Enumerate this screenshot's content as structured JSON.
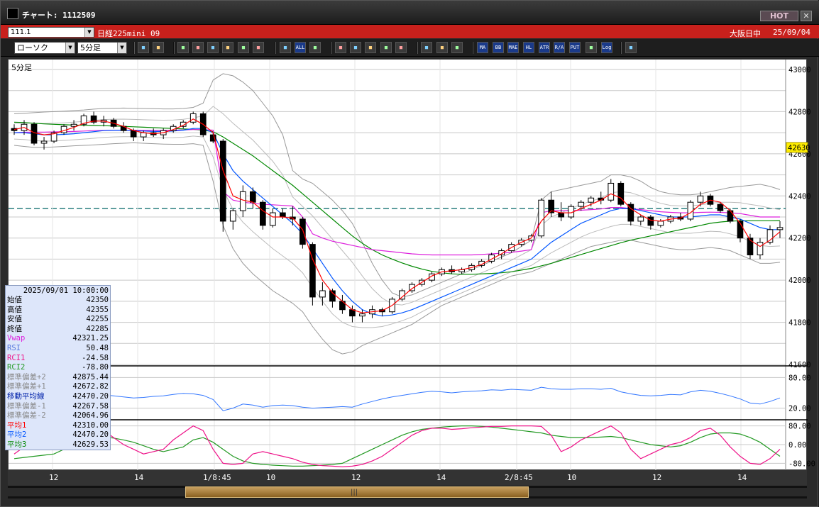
{
  "window": {
    "title": "チャート: 1112509",
    "hot_label": "HOT",
    "close_label": "✕"
  },
  "symbolbar": {
    "symbol_value": "111.1",
    "instrument": "日経225mini 09",
    "market": "大阪日中",
    "date": "25/09/04"
  },
  "toolbar": {
    "chart_type": "ローソク",
    "period": "5分足",
    "icons": [
      "zoom-icon",
      "cross-icon",
      "pen-icon",
      "draw-icon",
      "arrow-icon",
      "note-icon",
      "trash-icon",
      "bars-icon",
      "bars2-icon",
      "all-icon",
      "down-icon",
      "search-icon",
      "grid-icon",
      "mark-icon",
      "hatch-icon",
      "settings-icon",
      "wrench-icon",
      "color-icon",
      "ichimoku-icon",
      "ma-icon",
      "bb-icon",
      "mae-icon",
      "hl-icon",
      "atr-icon",
      "ra-icon",
      "put-icon",
      "frame-icon",
      "log-icon",
      "export-icon"
    ],
    "button_labels": {
      "all": "ALL",
      "ma": "MA",
      "bb": "BB",
      "mae": "MAE",
      "hl": "HL",
      "atr": "ATR",
      "ra": "R/A",
      "put": "PUT",
      "log": "Log"
    }
  },
  "chart": {
    "period_label": "5分足",
    "price_labels": [
      "43000",
      "42800",
      "42600",
      "42400",
      "42200",
      "42000",
      "41800",
      "41600"
    ],
    "current_price": "42630",
    "rsi_labels": [
      "80.00",
      "20.00"
    ],
    "rci_labels": [
      "80.00",
      "0.00",
      "-80.00"
    ],
    "x_labels": [
      "12",
      "14",
      "1/8:45",
      "10",
      "12",
      "14",
      "2/8:45",
      "10",
      "12",
      "14"
    ]
  },
  "colors": {
    "ma1": "#ff0000",
    "ma2": "#0055ff",
    "ma3": "#008800",
    "vwap": "#dd22dd",
    "bands": "#999999",
    "rsi": "#3377ff",
    "rci1": "#ee1188",
    "rci2": "#229922",
    "dashed": "#006666"
  },
  "chart_data": {
    "type": "candlestick",
    "ylim": [
      41600,
      43000
    ],
    "series_note_labels": [],
    "candles": [
      [
        42720,
        42740,
        42690,
        42710
      ],
      [
        42710,
        42760,
        42690,
        42740
      ],
      [
        42740,
        42750,
        42640,
        42650
      ],
      [
        42650,
        42680,
        42620,
        42660
      ],
      [
        42660,
        42710,
        42650,
        42700
      ],
      [
        42700,
        42740,
        42690,
        42730
      ],
      [
        42730,
        42760,
        42710,
        42740
      ],
      [
        42740,
        42790,
        42730,
        42780
      ],
      [
        42780,
        42800,
        42740,
        42750
      ],
      [
        42750,
        42780,
        42730,
        42760
      ],
      [
        42760,
        42770,
        42720,
        42730
      ],
      [
        42730,
        42750,
        42700,
        42710
      ],
      [
        42710,
        42720,
        42660,
        42680
      ],
      [
        42680,
        42710,
        42660,
        42700
      ],
      [
        42700,
        42720,
        42680,
        42690
      ],
      [
        42690,
        42720,
        42670,
        42710
      ],
      [
        42710,
        42740,
        42700,
        42730
      ],
      [
        42730,
        42760,
        42720,
        42750
      ],
      [
        42750,
        42800,
        42740,
        42790
      ],
      [
        42790,
        42800,
        42680,
        42690
      ],
      [
        42690,
        42700,
        42650,
        42660
      ],
      [
        42660,
        42670,
        42230,
        42280
      ],
      [
        42280,
        42340,
        42240,
        42330
      ],
      [
        42330,
        42450,
        42300,
        42420
      ],
      [
        42420,
        42440,
        42340,
        42370
      ],
      [
        42370,
        42380,
        42240,
        42260
      ],
      [
        42260,
        42340,
        42250,
        42320
      ],
      [
        42320,
        42340,
        42290,
        42300
      ],
      [
        42300,
        42350,
        42260,
        42290
      ],
      [
        42290,
        42300,
        42150,
        42170
      ],
      [
        42170,
        42180,
        41880,
        41920
      ],
      [
        41920,
        41990,
        41880,
        41950
      ],
      [
        41950,
        41960,
        41870,
        41900
      ],
      [
        41900,
        41930,
        41840,
        41860
      ],
      [
        41860,
        41880,
        41800,
        41830
      ],
      [
        41830,
        41860,
        41800,
        41840
      ],
      [
        41840,
        41880,
        41820,
        41860
      ],
      [
        41860,
        41870,
        41830,
        41850
      ],
      [
        41850,
        41920,
        41840,
        41910
      ],
      [
        41910,
        41960,
        41900,
        41950
      ],
      [
        41950,
        41990,
        41940,
        41980
      ],
      [
        41980,
        42010,
        41970,
        42000
      ],
      [
        42000,
        42040,
        41990,
        42030
      ],
      [
        42030,
        42060,
        42020,
        42050
      ],
      [
        42050,
        42070,
        42030,
        42040
      ],
      [
        42040,
        42060,
        42030,
        42050
      ],
      [
        42050,
        42080,
        42040,
        42070
      ],
      [
        42070,
        42100,
        42060,
        42090
      ],
      [
        42090,
        42130,
        42080,
        42120
      ],
      [
        42120,
        42150,
        42100,
        42140
      ],
      [
        42140,
        42180,
        42130,
        42170
      ],
      [
        42170,
        42200,
        42160,
        42190
      ],
      [
        42190,
        42220,
        42180,
        42210
      ],
      [
        42210,
        42390,
        42200,
        42380
      ],
      [
        42380,
        42420,
        42300,
        42320
      ],
      [
        42320,
        42370,
        42280,
        42300
      ],
      [
        42300,
        42360,
        42290,
        42350
      ],
      [
        42350,
        42380,
        42330,
        42370
      ],
      [
        42370,
        42400,
        42350,
        42390
      ],
      [
        42390,
        42420,
        42360,
        42380
      ],
      [
        42380,
        42480,
        42370,
        42460
      ],
      [
        42460,
        42470,
        42350,
        42360
      ],
      [
        42360,
        42370,
        42260,
        42280
      ],
      [
        42280,
        42310,
        42260,
        42300
      ],
      [
        42300,
        42310,
        42240,
        42260
      ],
      [
        42260,
        42290,
        42250,
        42280
      ],
      [
        42280,
        42310,
        42270,
        42300
      ],
      [
        42300,
        42320,
        42280,
        42290
      ],
      [
        42290,
        42380,
        42280,
        42370
      ],
      [
        42370,
        42420,
        42350,
        42400
      ],
      [
        42400,
        42410,
        42350,
        42360
      ],
      [
        42360,
        42370,
        42320,
        42330
      ],
      [
        42330,
        42340,
        42270,
        42280
      ],
      [
        42280,
        42290,
        42180,
        42200
      ],
      [
        42200,
        42220,
        42100,
        42120
      ],
      [
        42120,
        42200,
        42100,
        42180
      ],
      [
        42180,
        42260,
        42170,
        42240
      ],
      [
        42240,
        42280,
        42200,
        42250
      ]
    ],
    "ma1": [
      42715,
      42725,
      42700,
      42690,
      42695,
      42710,
      42725,
      42745,
      42755,
      42755,
      42745,
      42730,
      42710,
      42700,
      42695,
      42700,
      42715,
      42735,
      42765,
      42740,
      42700,
      42520,
      42400,
      42380,
      42370,
      42330,
      42300,
      42300,
      42295,
      42240,
      42100,
      42000,
      41940,
      41900,
      41860,
      41845,
      41850,
      41855,
      41880,
      41920,
      41960,
      41990,
      42020,
      42040,
      42045,
      42050,
      42060,
      42075,
      42100,
      42125,
      42155,
      42180,
      42200,
      42280,
      42330,
      42320,
      42320,
      42340,
      42360,
      42380,
      42410,
      42390,
      42340,
      42310,
      42285,
      42280,
      42290,
      42295,
      42320,
      42360,
      42380,
      42370,
      42330,
      42270,
      42190,
      42160,
      42190,
      42230
    ],
    "ma2": [
      42700,
      42700,
      42695,
      42690,
      42690,
      42692,
      42695,
      42700,
      42705,
      42710,
      42712,
      42712,
      42710,
      42708,
      42706,
      42706,
      42708,
      42712,
      42720,
      42720,
      42700,
      42600,
      42520,
      42470,
      42430,
      42390,
      42350,
      42310,
      42270,
      42220,
      42150,
      42080,
      42010,
      41950,
      41900,
      41860,
      41840,
      41830,
      41835,
      41845,
      41860,
      41880,
      41900,
      41920,
      41940,
      41960,
      41980,
      42000,
      42020,
      42040,
      42060,
      42080,
      42100,
      42140,
      42180,
      42210,
      42240,
      42270,
      42290,
      42310,
      42330,
      42340,
      42340,
      42330,
      42320,
      42310,
      42300,
      42300,
      42300,
      42305,
      42310,
      42310,
      42300,
      42290,
      42270,
      42250,
      42240,
      42240
    ],
    "ma3": [
      42750,
      42748,
      42745,
      42742,
      42740,
      42738,
      42736,
      42735,
      42734,
      42733,
      42732,
      42730,
      42728,
      42726,
      42724,
      42722,
      42720,
      42718,
      42716,
      42712,
      42705,
      42680,
      42650,
      42620,
      42590,
      42555,
      42520,
      42485,
      42450,
      42410,
      42370,
      42330,
      42290,
      42250,
      42210,
      42175,
      42145,
      42120,
      42100,
      42082,
      42066,
      42053,
      42042,
      42035,
      42030,
      42028,
      42028,
      42030,
      42032,
      42035,
      42040,
      42048,
      42056,
      42068,
      42080,
      42094,
      42108,
      42122,
      42136,
      42150,
      42164,
      42178,
      42190,
      42200,
      42210,
      42220,
      42230,
      42240,
      42250,
      42260,
      42270,
      42276,
      42280,
      42282,
      42282,
      42282,
      42282,
      42283
    ],
    "vwap": [
      42700,
      42702,
      42703,
      42703,
      42704,
      42705,
      42706,
      42708,
      42710,
      42711,
      42712,
      42712,
      42712,
      42711,
      42711,
      42711,
      42712,
      42713,
      42715,
      42715,
      42712,
      42420,
      42380,
      42370,
      42365,
      42360,
      42358,
      42355,
      42352,
      42300,
      42220,
      42200,
      42185,
      42175,
      42165,
      42155,
      42145,
      42140,
      42135,
      42130,
      42125,
      42122,
      42120,
      42120,
      42120,
      42120,
      42120,
      42122,
      42125,
      42128,
      42132,
      42138,
      42145,
      42320,
      42330,
      42330,
      42330,
      42332,
      42335,
      42338,
      42345,
      42345,
      42340,
      42335,
      42330,
      42325,
      42322,
      42320,
      42320,
      42322,
      42323,
      42322,
      42320,
      42316,
      42308,
      42300,
      42300,
      42300
    ],
    "bb_upper2": [
      42790,
      42792,
      42795,
      42798,
      42800,
      42802,
      42805,
      42808,
      42812,
      42815,
      42816,
      42817,
      42816,
      42815,
      42814,
      42813,
      42813,
      42815,
      42820,
      42840,
      42950,
      42980,
      42970,
      42940,
      42900,
      42840,
      42780,
      42690,
      42520,
      42480,
      42460,
      42420,
      42380,
      42330,
      42270,
      42180,
      42080,
      42000,
      41940,
      41920,
      41930,
      41950,
      41970,
      41990,
      42010,
      42030,
      42050,
      42070,
      42090,
      42110,
      42130,
      42160,
      42190,
      42380,
      42420,
      42430,
      42440,
      42450,
      42460,
      42470,
      42500,
      42500,
      42490,
      42470,
      42440,
      42420,
      42410,
      42405,
      42405,
      42410,
      42420,
      42430,
      42440,
      42445,
      42450,
      42455,
      42445,
      42430
    ],
    "bb_lower2": [
      42640,
      42635,
      42630,
      42630,
      42632,
      42635,
      42638,
      42640,
      42642,
      42645,
      42648,
      42650,
      42652,
      42650,
      42648,
      42646,
      42645,
      42645,
      42648,
      42640,
      42470,
      42260,
      42150,
      42080,
      42030,
      41990,
      41950,
      41920,
      41890,
      41850,
      41780,
      41720,
      41670,
      41650,
      41660,
      41690,
      41710,
      41730,
      41750,
      41770,
      41790,
      41820,
      41850,
      41880,
      41900,
      41920,
      41940,
      41960,
      41980,
      42000,
      42020,
      42030,
      42040,
      42060,
      42080,
      42100,
      42120,
      42140,
      42160,
      42170,
      42180,
      42190,
      42190,
      42180,
      42170,
      42160,
      42150,
      42145,
      42145,
      42150,
      42155,
      42150,
      42140,
      42120,
      42100,
      42080,
      42080,
      42085
    ],
    "rsi": [
      38,
      39,
      38,
      40,
      43,
      44,
      46,
      48,
      47,
      46,
      44,
      42,
      40,
      41,
      43,
      44,
      47,
      49,
      48,
      45,
      37,
      15,
      20,
      28,
      26,
      22,
      25,
      26,
      25,
      22,
      20,
      21,
      22,
      23,
      22,
      28,
      33,
      38,
      42,
      45,
      48,
      51,
      53,
      52,
      50,
      52,
      53,
      54,
      56,
      55,
      57,
      56,
      55,
      61,
      58,
      57,
      57,
      58,
      58,
      57,
      59,
      52,
      48,
      45,
      44,
      45,
      47,
      46,
      52,
      55,
      53,
      49,
      44,
      38,
      30,
      28,
      33,
      40
    ],
    "rci1": [
      -40,
      -10,
      20,
      40,
      60,
      70,
      80,
      82,
      80,
      60,
      30,
      0,
      -20,
      -40,
      -30,
      -20,
      20,
      50,
      80,
      60,
      -20,
      -80,
      -85,
      -80,
      -40,
      -30,
      -40,
      -50,
      -60,
      -75,
      -85,
      -90,
      -92,
      -95,
      -92,
      -85,
      -70,
      -50,
      -20,
      10,
      40,
      60,
      70,
      70,
      65,
      68,
      72,
      75,
      78,
      78,
      80,
      80,
      80,
      78,
      40,
      -30,
      -10,
      20,
      40,
      60,
      80,
      50,
      -20,
      -60,
      -40,
      -20,
      0,
      10,
      30,
      60,
      70,
      40,
      -10,
      -50,
      -80,
      -85,
      -60,
      -20
    ],
    "rci2": [
      -60,
      -55,
      -50,
      -45,
      -40,
      -20,
      0,
      20,
      30,
      32,
      28,
      20,
      10,
      -5,
      -20,
      -30,
      -20,
      -10,
      20,
      30,
      10,
      -20,
      -50,
      -70,
      -80,
      -85,
      -88,
      -90,
      -92,
      -92,
      -90,
      -88,
      -85,
      -80,
      -60,
      -40,
      -20,
      0,
      20,
      40,
      55,
      65,
      70,
      75,
      78,
      80,
      80,
      78,
      75,
      70,
      65,
      60,
      55,
      50,
      40,
      35,
      30,
      30,
      30,
      32,
      35,
      30,
      20,
      10,
      0,
      -5,
      -10,
      -5,
      10,
      30,
      45,
      50,
      50,
      45,
      30,
      10,
      -20,
      -50
    ],
    "info_rows": [
      {
        "k": "始値",
        "v": "42350",
        "c": "#000000"
      },
      {
        "k": "高値",
        "v": "42355",
        "c": "#000000"
      },
      {
        "k": "安値",
        "v": "42255",
        "c": "#000000"
      },
      {
        "k": "終値",
        "v": "42285",
        "c": "#000000"
      },
      {
        "k": "Vwap",
        "v": "42321.25",
        "c": "#dd22dd"
      },
      {
        "k": "RSI",
        "v": "50.48",
        "c": "#5577dd"
      },
      {
        "k": "RCI1",
        "v": "-24.58",
        "c": "#ee1188"
      },
      {
        "k": "RCI2",
        "v": "-78.80",
        "c": "#229922"
      },
      {
        "k": "標準偏差+2",
        "v": "42875.44",
        "c": "#888888"
      },
      {
        "k": "標準偏差+1",
        "v": "42672.82",
        "c": "#888888"
      },
      {
        "k": "移動平均線",
        "v": "42470.20",
        "c": "#0022aa"
      },
      {
        "k": "標準偏差-1",
        "v": "42267.58",
        "c": "#888888"
      },
      {
        "k": "標準偏差-2",
        "v": "42064.96",
        "c": "#888888"
      },
      {
        "k": "平均1",
        "v": "42310.00",
        "c": "#ff0000"
      },
      {
        "k": "平均2",
        "v": "42470.20",
        "c": "#0055ff"
      },
      {
        "k": "平均3",
        "v": "42629.53",
        "c": "#008800"
      }
    ],
    "info_datetime": "2025/09/01 10:00:00"
  }
}
